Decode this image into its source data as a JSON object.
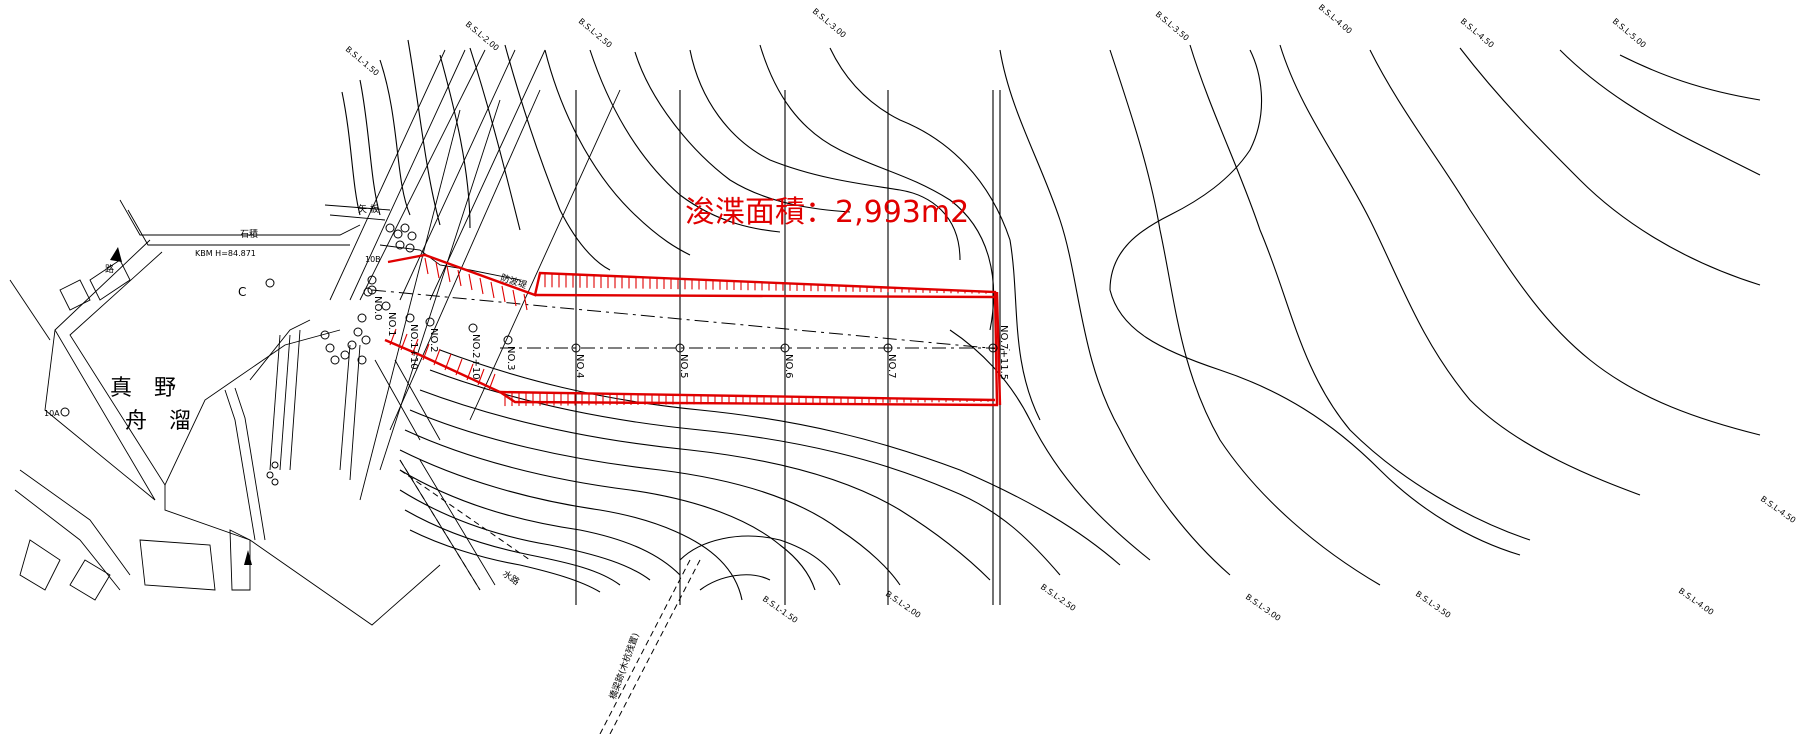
{
  "title": "浚渫面積：2,993m2",
  "basin_name": {
    "line1": "真　野",
    "line2": "舟　溜"
  },
  "kbm_label": "KBM H=84.871",
  "c_label": "C",
  "label_10a": "10A",
  "label_10b": "10B",
  "label_bokyo": "防波堤",
  "label_suiro": "水路",
  "label_kyoryo": "橋梁跡(木杭残置)",
  "label_kago": "矢 板",
  "label_sekiwa": "石積",
  "label_ro": "路",
  "sections": [
    "NO.0",
    "NO.1",
    "NO.1+10",
    "NO.2",
    "NO.2+10",
    "NO.3",
    "NO.4",
    "NO.5",
    "NO.6",
    "NO.7",
    "NO.7+11.5"
  ],
  "depth_labels_top": [
    "B.S.L-1.50",
    "B.S.L-2.00",
    "B.S.L-2.50",
    "B.S.L-3.00",
    "B.S.L-3.50",
    "B.S.L-4.00",
    "B.S.L-4.50",
    "B.S.L-5.00"
  ],
  "depth_labels_bottom": [
    "B.S.L-1.50",
    "B.S.L-2.00",
    "B.S.L-2.50",
    "B.S.L-3.00",
    "B.S.L-3.50",
    "B.S.L-4.00",
    "B.S.L-4.50"
  ],
  "colors": {
    "dredge": "#e00000",
    "line": "#000000",
    "background": "#ffffff"
  }
}
